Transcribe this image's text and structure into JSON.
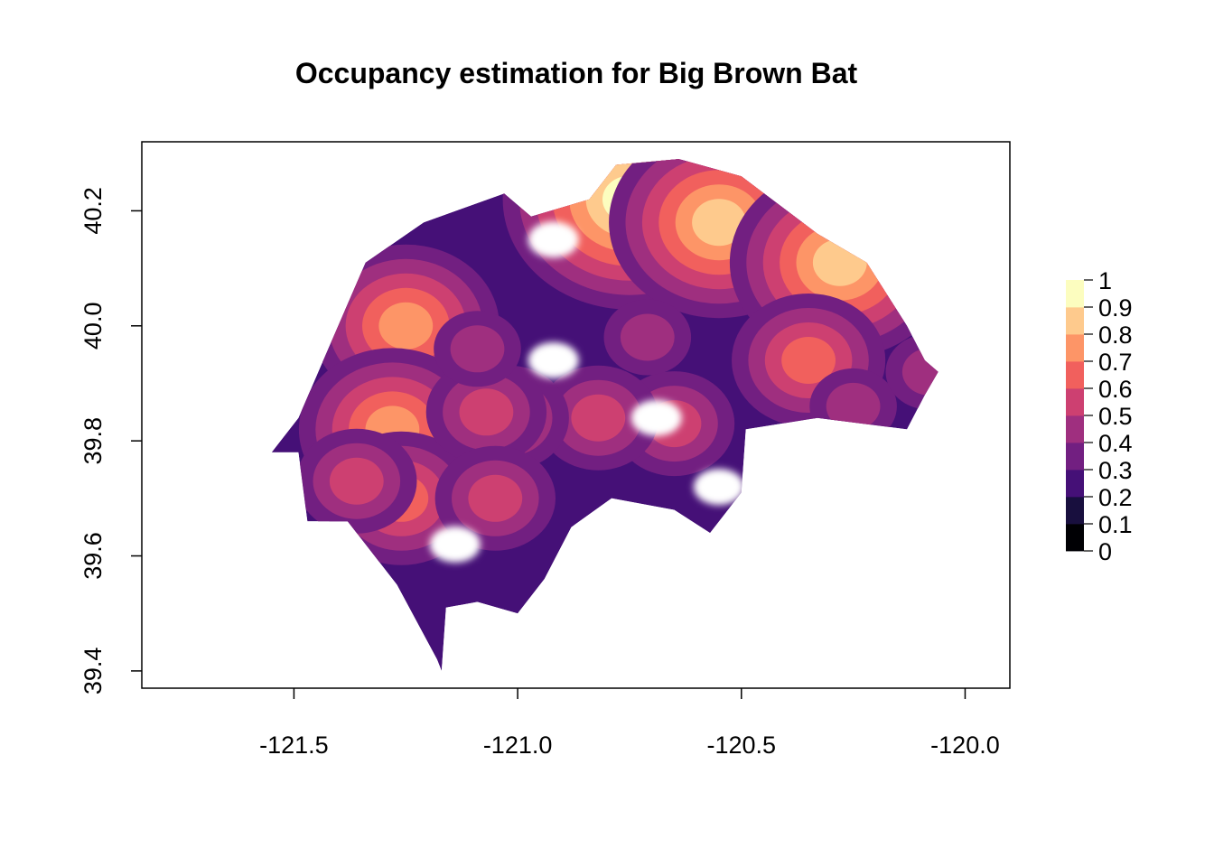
{
  "title": "Occupancy estimation for Big Brown Bat",
  "x_axis": {
    "ticks": [
      -121.5,
      -121.0,
      -120.5,
      -120.0
    ],
    "tick_labels": [
      "-121.5",
      "-121.0",
      "-120.5",
      "-120.0"
    ],
    "range": [
      -121.84,
      -119.9
    ]
  },
  "y_axis": {
    "ticks": [
      39.4,
      39.6,
      39.8,
      40.0,
      40.2
    ],
    "tick_labels": [
      "39.4",
      "39.6",
      "39.8",
      "40.0",
      "40.2"
    ],
    "range": [
      39.37,
      40.32
    ]
  },
  "legend": {
    "breaks": [
      0,
      0.1,
      0.2,
      0.3,
      0.4,
      0.5,
      0.6,
      0.7,
      0.8,
      0.9,
      1
    ],
    "labels": [
      "0",
      "0.1",
      "0.2",
      "0.3",
      "0.4",
      "0.5",
      "0.6",
      "0.7",
      "0.8",
      "0.9",
      "1"
    ],
    "colors": [
      "#000004",
      "#180f3e",
      "#451077",
      "#721f81",
      "#9f2f7f",
      "#cd4071",
      "#f1605d",
      "#fd9567",
      "#feca8d",
      "#fcfdbf"
    ]
  },
  "chart_data": {
    "type": "heatmap",
    "title": "Occupancy estimation for Big Brown Bat",
    "xlabel": "",
    "ylabel": "",
    "xlim": [
      -121.84,
      -119.9
    ],
    "ylim": [
      39.37,
      40.32
    ],
    "value_range": [
      0,
      1
    ],
    "palette": "magma",
    "region_boundary": [
      [
        -121.03,
        40.23
      ],
      [
        -120.97,
        40.19
      ],
      [
        -120.84,
        40.22
      ],
      [
        -120.78,
        40.28
      ],
      [
        -120.64,
        40.29
      ],
      [
        -120.5,
        40.26
      ],
      [
        -120.33,
        40.16
      ],
      [
        -120.22,
        40.11
      ],
      [
        -120.13,
        40.0
      ],
      [
        -120.09,
        39.94
      ],
      [
        -120.06,
        39.92
      ],
      [
        -120.09,
        39.88
      ],
      [
        -120.13,
        39.82
      ],
      [
        -120.33,
        39.84
      ],
      [
        -120.49,
        39.82
      ],
      [
        -120.5,
        39.71
      ],
      [
        -120.57,
        39.64
      ],
      [
        -120.65,
        39.68
      ],
      [
        -120.79,
        39.7
      ],
      [
        -120.88,
        39.65
      ],
      [
        -120.94,
        39.56
      ],
      [
        -121.0,
        39.5
      ],
      [
        -121.09,
        39.52
      ],
      [
        -121.16,
        39.51
      ],
      [
        -121.17,
        39.4
      ],
      [
        -121.18,
        39.42
      ],
      [
        -121.27,
        39.55
      ],
      [
        -121.38,
        39.66
      ],
      [
        -121.47,
        39.66
      ],
      [
        -121.49,
        39.78
      ],
      [
        -121.55,
        39.78
      ],
      [
        -121.49,
        39.84
      ],
      [
        -121.44,
        39.93
      ],
      [
        -121.34,
        40.11
      ],
      [
        -121.21,
        40.18
      ]
    ],
    "high_occupancy_patches": [
      {
        "lon": -120.75,
        "lat": 40.22,
        "value": 0.95
      },
      {
        "lon": -120.55,
        "lat": 40.18,
        "value": 0.9
      },
      {
        "lon": -120.28,
        "lat": 40.11,
        "value": 0.85
      },
      {
        "lon": -121.25,
        "lat": 40.0,
        "value": 0.8
      },
      {
        "lon": -121.28,
        "lat": 39.82,
        "value": 0.75
      },
      {
        "lon": -121.26,
        "lat": 39.7,
        "value": 0.7
      },
      {
        "lon": -120.35,
        "lat": 39.94,
        "value": 0.7
      },
      {
        "lon": -120.65,
        "lat": 39.83,
        "value": 0.6
      },
      {
        "lon": -120.82,
        "lat": 39.84,
        "value": 0.6
      },
      {
        "lon": -121.02,
        "lat": 39.84,
        "value": 0.6
      },
      {
        "lon": -121.07,
        "lat": 39.85,
        "value": 0.55
      },
      {
        "lon": -121.36,
        "lat": 39.73,
        "value": 0.55
      },
      {
        "lon": -121.05,
        "lat": 39.7,
        "value": 0.55
      },
      {
        "lon": -120.71,
        "lat": 39.98,
        "value": 0.5
      },
      {
        "lon": -121.09,
        "lat": 39.96,
        "value": 0.5
      },
      {
        "lon": -120.25,
        "lat": 39.86,
        "value": 0.5
      },
      {
        "lon": -120.08,
        "lat": 39.92,
        "value": 0.45
      }
    ],
    "no_data_gaps": [
      {
        "lon": -120.92,
        "lat": 40.15
      },
      {
        "lon": -120.92,
        "lat": 39.94
      },
      {
        "lon": -120.69,
        "lat": 39.84
      },
      {
        "lon": -120.55,
        "lat": 39.72
      },
      {
        "lon": -121.14,
        "lat": 39.62
      }
    ]
  }
}
